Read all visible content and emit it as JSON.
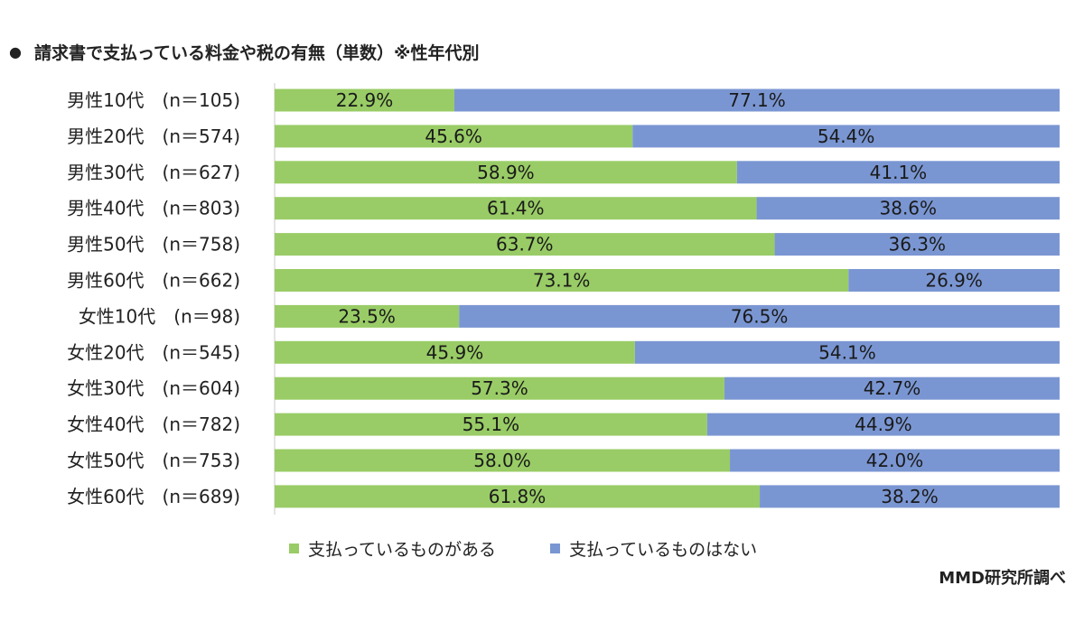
{
  "title": "請求書で支払っている料金や税の有無（単数）※性年代別",
  "bullet": "●",
  "source": "MMD研究所調べ",
  "colors": {
    "paying": "#99cc66",
    "notPaying": "#7a96d2",
    "axis": "#c8c8c8"
  },
  "chart_data": {
    "type": "bar",
    "stacked": true,
    "orientation": "horizontal",
    "percent": true,
    "categories": [
      "男性10代　(n＝105)",
      "男性20代　(n＝574)",
      "男性30代　(n＝627)",
      "男性40代　(n＝803)",
      "男性50代　(n＝758)",
      "男性60代　(n＝662)",
      "女性10代　(n＝98)",
      "女性20代　(n＝545)",
      "女性30代　(n＝604)",
      "女性40代　(n＝782)",
      "女性50代　(n＝753)",
      "女性60代　(n＝689)"
    ],
    "series": [
      {
        "name": "支払っているものがある",
        "values": [
          22.9,
          45.6,
          58.9,
          61.4,
          63.7,
          73.1,
          23.5,
          45.9,
          57.3,
          55.1,
          58.0,
          61.8
        ],
        "labels": [
          "22.9%",
          "45.6%",
          "58.9%",
          "61.4%",
          "63.7%",
          "73.1%",
          "23.5%",
          "45.9%",
          "57.3%",
          "55.1%",
          "58.0%",
          "61.8%"
        ]
      },
      {
        "name": "支払っているものはない",
        "values": [
          77.1,
          54.4,
          41.1,
          38.6,
          36.3,
          26.9,
          76.5,
          54.1,
          42.7,
          44.9,
          42.0,
          38.2
        ],
        "labels": [
          "77.1%",
          "54.4%",
          "41.1%",
          "38.6%",
          "36.3%",
          "26.9%",
          "76.5%",
          "54.1%",
          "42.7%",
          "44.9%",
          "42.0%",
          "38.2%"
        ]
      }
    ],
    "xlim": [
      0,
      100
    ],
    "legend_position": "bottom",
    "grid": false
  }
}
